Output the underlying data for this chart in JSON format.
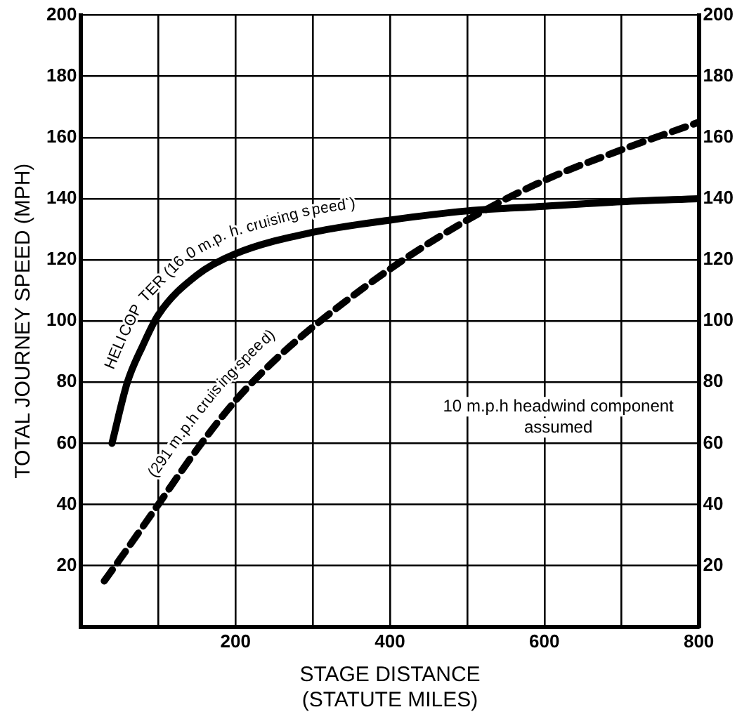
{
  "chart_data": {
    "type": "line",
    "xlabel": "STAGE DISTANCE\n(STATUTE MILES)",
    "ylabel": "TOTAL JOURNEY SPEED (MPH)",
    "xlim": [
      0,
      800
    ],
    "xticks": [
      {
        "value": 100,
        "label": null
      },
      200,
      {
        "value": 300,
        "label": null
      },
      400,
      {
        "value": 500,
        "label": null
      },
      600,
      {
        "value": 700,
        "label": null
      },
      800
    ],
    "ylim": [
      0,
      200
    ],
    "yticks": [
      20,
      40,
      60,
      80,
      100,
      120,
      140,
      160,
      180,
      200
    ],
    "y2lim": [
      0,
      200
    ],
    "y2ticks": [
      20,
      40,
      60,
      80,
      100,
      120,
      140,
      160,
      180,
      200
    ],
    "grid": true,
    "legend": false,
    "marker": "none",
    "series": [
      {
        "name": "HELICOPTER (160 m.p.h. cruising speed )",
        "color": "#000000",
        "line_style": "solid",
        "x": [
          40,
          60,
          80,
          100,
          150,
          200,
          300,
          400,
          500,
          600,
          700,
          800
        ],
        "values": [
          60,
          80,
          92,
          102,
          115,
          122,
          129,
          133,
          136,
          137.5,
          139,
          140
        ]
      },
      {
        "name": "(291 m.p.h cruising speed)",
        "color": "#000000",
        "line_style": "dashed",
        "x": [
          30,
          50,
          100,
          150,
          200,
          250,
          300,
          400,
          500,
          600,
          700,
          800
        ],
        "values": [
          15,
          22,
          40,
          58,
          74,
          87,
          98,
          117,
          133,
          146,
          156,
          165
        ]
      }
    ],
    "annotations": [
      "10 m.p.h headwind component\nassumed"
    ]
  }
}
